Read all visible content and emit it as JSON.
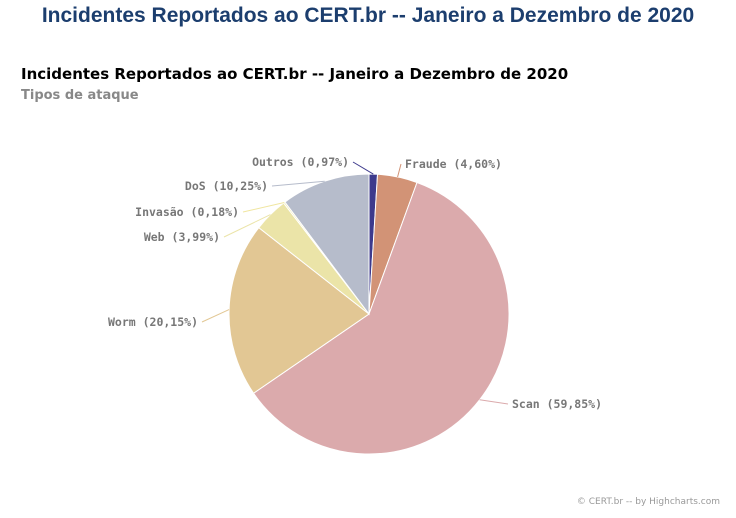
{
  "page": {
    "heading": "Incidentes Reportados ao CERT.br -- Janeiro a Dezembro de 2020"
  },
  "chart_data": {
    "type": "pie",
    "title": "Incidentes Reportados ao CERT.br -- Janeiro a Dezembro de 2020",
    "subtitle": "Tipos de ataque",
    "slices": [
      {
        "name": "Outros",
        "value": 0.97,
        "label": "Outros (0,97%)",
        "color": "#3d3a8c"
      },
      {
        "name": "Fraude",
        "value": 4.6,
        "label": "Fraude (4,60%)",
        "color": "#d29376"
      },
      {
        "name": "Scan",
        "value": 59.85,
        "label": "Scan (59,85%)",
        "color": "#dbaaac"
      },
      {
        "name": "Worm",
        "value": 20.15,
        "label": "Worm (20,15%)",
        "color": "#e2c794"
      },
      {
        "name": "Web",
        "value": 3.99,
        "label": "Web (3,99%)",
        "color": "#ebe4a8"
      },
      {
        "name": "Invasão",
        "value": 0.18,
        "label": "Invasão (0,18%)",
        "color": "#f0e6a0"
      },
      {
        "name": "DoS",
        "value": 10.25,
        "label": "DoS (10,25%)",
        "color": "#b6bccb"
      }
    ],
    "credits": "© CERT.br -- by Highcharts.com"
  }
}
